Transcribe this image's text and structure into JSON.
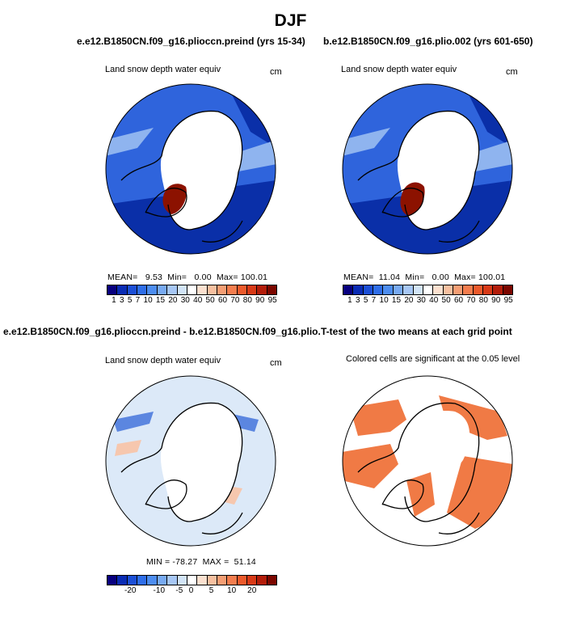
{
  "title": "DJF",
  "panels": [
    {
      "title": "e.e12.B1850CN.f09_g16.pliocсn.preind (yrs 15-34)",
      "left_label": "Land snow depth water equiv",
      "right_label": "cm",
      "stats": "MEAN=   9.53  Min=   0.00  Max= 100.01"
    },
    {
      "title": "b.e12.B1850CN.f09_g16.plio.002 (yrs 601-650)",
      "left_label": "Land snow depth water equiv",
      "right_label": "cm",
      "stats": "MEAN=  11.04  Min=   0.00  Max= 100.01"
    },
    {
      "title": "e.e12.B1850CN.f09_g16.pliocсn.preind - b.e12.B1850CN.f09_g16.plio.002",
      "left_label": "Land snow depth water equiv",
      "right_label": "cm",
      "stats": "MIN = -78.27  MAX =  51.14"
    },
    {
      "title": "T-test of the two means at each grid point",
      "left_label": "Colored cells are significant at the 0.05 level",
      "right_label": ""
    }
  ],
  "colorbars": {
    "abs": {
      "colors": [
        "#08007f",
        "#0a2cb4",
        "#1c4fd6",
        "#2f6ee8",
        "#4d8df0",
        "#78aaf2",
        "#a7c7f5",
        "#d2e4f7",
        "#ffffff",
        "#fbe0cf",
        "#f7c0a0",
        "#f59e74",
        "#f47d4e",
        "#ec5a2c",
        "#d83a17",
        "#b31d0a",
        "#7c0700"
      ],
      "tick_labels": [
        "1",
        "3",
        "5",
        "7",
        "10",
        "15",
        "20",
        "30",
        "40",
        "50",
        "60",
        "70",
        "80",
        "90",
        "95"
      ]
    },
    "diff": {
      "colors": [
        "#08007f",
        "#0a2cb4",
        "#1c4fd6",
        "#2f6ee8",
        "#4d8df0",
        "#78aaf2",
        "#a7c7f5",
        "#d2e4f7",
        "#ffffff",
        "#fbe0cf",
        "#f7c0a0",
        "#f59e74",
        "#f47d4e",
        "#ec5a2c",
        "#d83a17",
        "#b31d0a",
        "#7c0700"
      ],
      "tick_labels": [
        "-20",
        "-10",
        "-5",
        "0",
        "5",
        "10",
        "20"
      ]
    }
  },
  "map_colors": {
    "snow_dark": "#0a2fa8",
    "snow_mid": "#2f64dc",
    "snow_light": "#8fb4ef",
    "snow_max": "#8c1200",
    "diff_bg": "#dce9f8",
    "diff_neg": "#5b86e0",
    "diff_pos": "#f6c7ae",
    "sig": "#f07a45",
    "coast": "#000000"
  }
}
